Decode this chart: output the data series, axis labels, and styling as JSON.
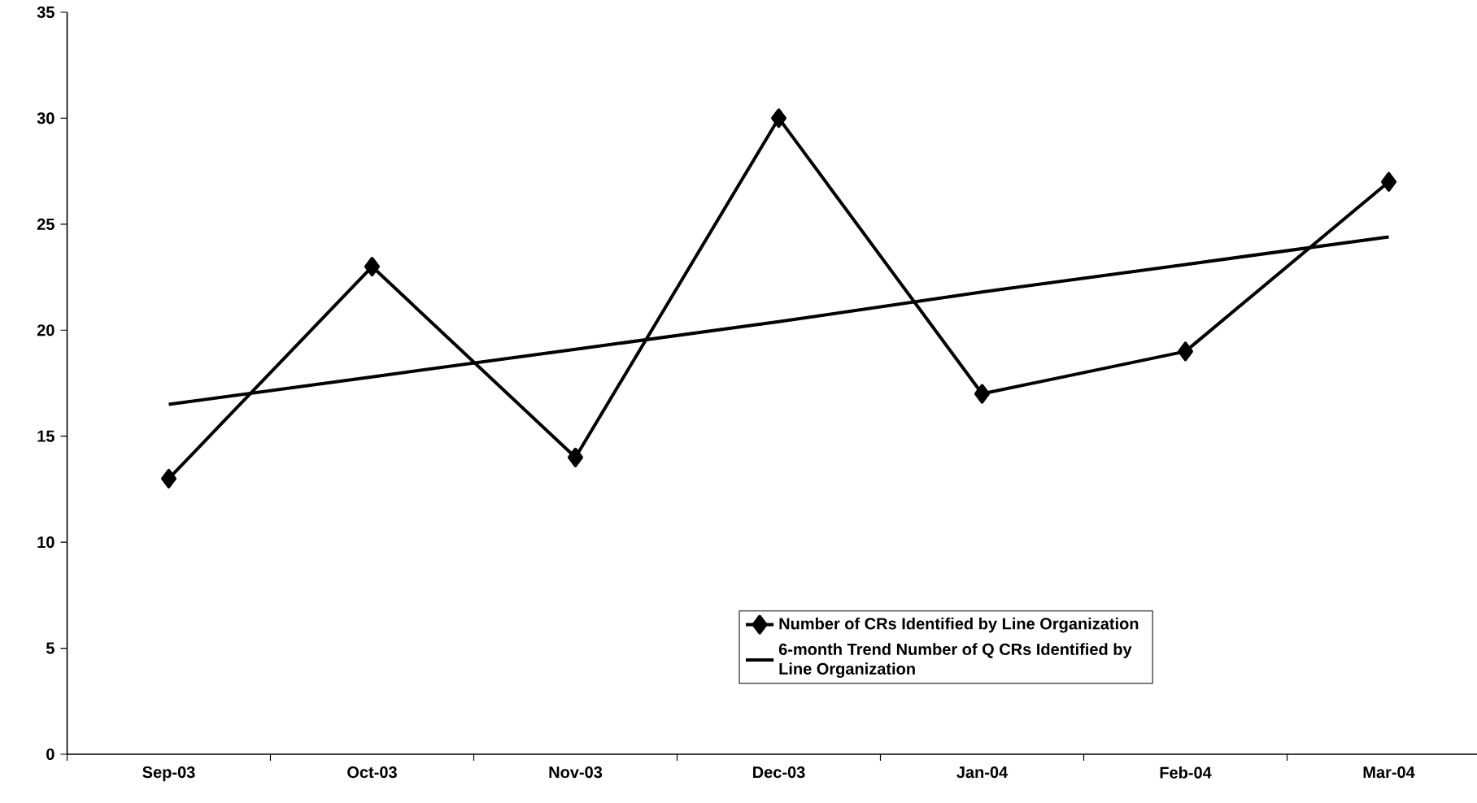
{
  "chart_data": {
    "type": "line",
    "categories": [
      "Sep-03",
      "Oct-03",
      "Nov-03",
      "Dec-03",
      "Jan-04",
      "Feb-04",
      "Mar-04"
    ],
    "series": [
      {
        "name": "Number of CRs Identified by Line Organization",
        "color": "#000000",
        "marker": "diamond",
        "values": [
          13,
          23,
          14,
          30,
          17,
          19,
          27
        ]
      },
      {
        "name": "6-month Trend Number of Q CRs Identified by Line Organization",
        "color": "#000000",
        "marker": "none",
        "values": [
          16.5,
          17.8,
          19.1,
          20.4,
          21.8,
          23.1,
          24.4
        ]
      }
    ],
    "ylim": [
      0,
      35
    ],
    "yticks": [
      0,
      5,
      10,
      15,
      20,
      25,
      30,
      35
    ],
    "grid": false,
    "legend": "bottom"
  }
}
